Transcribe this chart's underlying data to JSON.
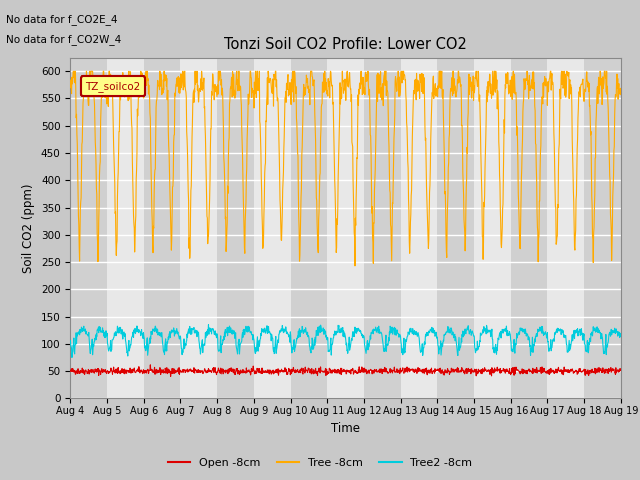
{
  "title": "Tonzi Soil CO2 Profile: Lower CO2",
  "xlabel": "Time",
  "ylabel": "Soil CO2 (ppm)",
  "ylim": [
    0,
    625
  ],
  "yticks": [
    0,
    50,
    100,
    150,
    200,
    250,
    300,
    350,
    400,
    450,
    500,
    550,
    600
  ],
  "annotations": [
    "No data for f_CO2E_4",
    "No data for f_CO2W_4"
  ],
  "legend_label": "TZ_soilco2",
  "series": {
    "open": {
      "label": "Open -8cm",
      "color": "#dd0000"
    },
    "tree": {
      "label": "Tree -8cm",
      "color": "#ffaa00"
    },
    "tree2": {
      "label": "Tree2 -8cm",
      "color": "#00ccdd"
    }
  },
  "n_days": 15,
  "bg_color": "#c8c8c8",
  "plot_bg_color_light": "#e8e8e8",
  "plot_bg_color_dark": "#d0d0d0",
  "grid_color": "#ffffff"
}
